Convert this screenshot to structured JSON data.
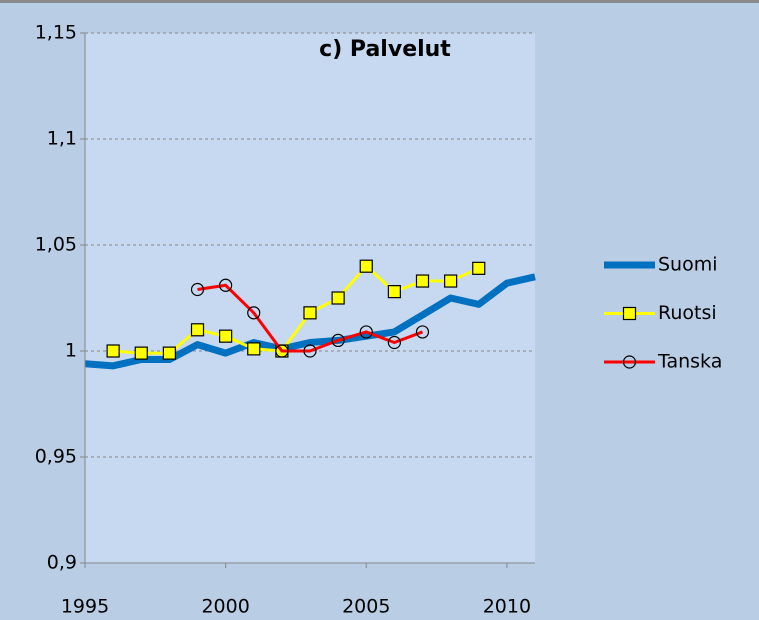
{
  "chart_data": {
    "type": "line",
    "title": "c) Palvelut",
    "x": [
      1995,
      1996,
      1997,
      1998,
      1999,
      2000,
      2001,
      2002,
      2003,
      2004,
      2005,
      2006,
      2007,
      2008,
      2009,
      2010,
      2011
    ],
    "series": [
      {
        "name": "Suomi",
        "color": "#0070c0",
        "marker": "none",
        "values": [
          0.994,
          0.993,
          0.996,
          0.996,
          1.003,
          0.999,
          1.004,
          1.001,
          1.004,
          1.005,
          1.007,
          1.009,
          1.017,
          1.025,
          1.022,
          1.032,
          1.035
        ]
      },
      {
        "name": "Ruotsi",
        "color": "#ffff00",
        "marker": "square",
        "values": [
          null,
          1.0,
          0.999,
          0.999,
          1.01,
          1.007,
          1.001,
          1.0,
          1.018,
          1.025,
          1.04,
          1.028,
          1.033,
          1.033,
          1.039,
          null,
          null
        ]
      },
      {
        "name": "Tanska",
        "color": "#ff0000",
        "marker": "circle",
        "values": [
          null,
          null,
          null,
          null,
          1.029,
          1.031,
          1.018,
          1.0,
          1.0,
          1.005,
          1.009,
          1.004,
          1.009,
          null,
          null,
          null,
          null
        ]
      }
    ],
    "xlim": [
      1995,
      2011
    ],
    "xticks": [
      1995,
      2000,
      2005,
      2010
    ],
    "ylim": [
      0.9,
      1.15
    ],
    "yticks": [
      {
        "value": 0.9,
        "label": "0,9"
      },
      {
        "value": 0.95,
        "label": "0,95"
      },
      1,
      {
        "value": 1.05,
        "label": "1,05"
      },
      {
        "value": 1.1,
        "label": "1,1"
      },
      {
        "value": 1.15,
        "label": "1,15"
      }
    ],
    "grid": true,
    "legend": "right"
  }
}
